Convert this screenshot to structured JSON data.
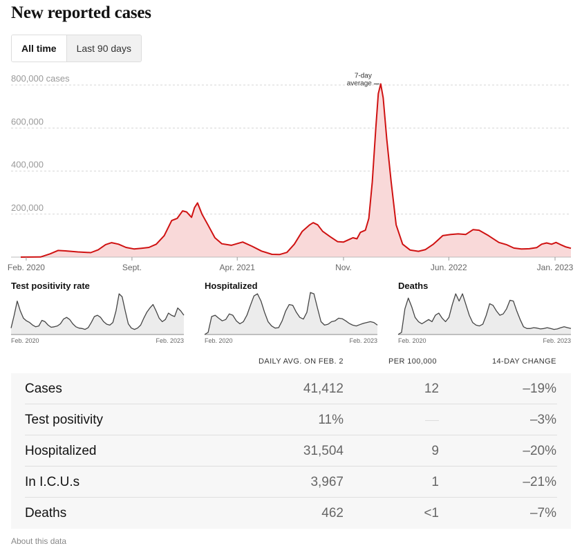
{
  "title": "New reported cases",
  "toggle": {
    "all_time": "All time",
    "last_90": "Last 90 days",
    "active": "All time"
  },
  "chart_data": [
    {
      "type": "area",
      "title": "",
      "ylim": [
        0,
        800000
      ],
      "yticks": [
        {
          "value": 800000,
          "label": "800,000 cases"
        },
        {
          "value": 600000,
          "label": "600,000"
        },
        {
          "value": 400000,
          "label": "400,000"
        },
        {
          "value": 200000,
          "label": "200,000"
        }
      ],
      "xrange": [
        "2020-01-21",
        "2023-02-02"
      ],
      "xticks": [
        {
          "date": "2020-02-01",
          "label": "Feb. 2020"
        },
        {
          "date": "2020-09-01",
          "label": "Sept."
        },
        {
          "date": "2021-04-01",
          "label": "Apr. 2021"
        },
        {
          "date": "2021-11-01",
          "label": "Nov."
        },
        {
          "date": "2022-06-01",
          "label": "Jun. 2022"
        },
        {
          "date": "2023-01-01",
          "label": "Jan. 2023"
        }
      ],
      "grid": true,
      "annotation": {
        "text": [
          "7-day",
          "average"
        ],
        "date": "2022-01-15",
        "value": 805000
      },
      "line_color": "#cf1111",
      "fill_color": "#f9d9d9",
      "series": [
        {
          "points": [
            [
              "2020-01-21",
              0
            ],
            [
              "2020-03-01",
              500
            ],
            [
              "2020-03-20",
              15000
            ],
            [
              "2020-04-05",
              31000
            ],
            [
              "2020-04-20",
              29000
            ],
            [
              "2020-05-15",
              24000
            ],
            [
              "2020-06-10",
              21000
            ],
            [
              "2020-06-25",
              34000
            ],
            [
              "2020-07-10",
              58000
            ],
            [
              "2020-07-22",
              67000
            ],
            [
              "2020-08-05",
              60000
            ],
            [
              "2020-08-20",
              45000
            ],
            [
              "2020-09-05",
              38000
            ],
            [
              "2020-09-20",
              41000
            ],
            [
              "2020-10-05",
              45000
            ],
            [
              "2020-10-20",
              60000
            ],
            [
              "2020-11-05",
              100000
            ],
            [
              "2020-11-20",
              170000
            ],
            [
              "2020-12-01",
              180000
            ],
            [
              "2020-12-12",
              215000
            ],
            [
              "2020-12-20",
              210000
            ],
            [
              "2020-12-30",
              185000
            ],
            [
              "2021-01-05",
              230000
            ],
            [
              "2021-01-11",
              252000
            ],
            [
              "2021-01-20",
              200000
            ],
            [
              "2021-02-01",
              150000
            ],
            [
              "2021-02-15",
              90000
            ],
            [
              "2021-03-01",
              62000
            ],
            [
              "2021-03-20",
              55000
            ],
            [
              "2021-04-12",
              70000
            ],
            [
              "2021-05-01",
              50000
            ],
            [
              "2021-05-20",
              28000
            ],
            [
              "2021-06-10",
              13000
            ],
            [
              "2021-06-25",
              12000
            ],
            [
              "2021-07-10",
              22000
            ],
            [
              "2021-07-25",
              60000
            ],
            [
              "2021-08-10",
              120000
            ],
            [
              "2021-08-25",
              150000
            ],
            [
              "2021-09-01",
              160000
            ],
            [
              "2021-09-10",
              150000
            ],
            [
              "2021-09-20",
              120000
            ],
            [
              "2021-10-05",
              95000
            ],
            [
              "2021-10-20",
              72000
            ],
            [
              "2021-11-01",
              70000
            ],
            [
              "2021-11-20",
              90000
            ],
            [
              "2021-11-28",
              85000
            ],
            [
              "2021-12-05",
              115000
            ],
            [
              "2021-12-15",
              125000
            ],
            [
              "2021-12-22",
              180000
            ],
            [
              "2021-12-29",
              350000
            ],
            [
              "2022-01-05",
              600000
            ],
            [
              "2022-01-10",
              760000
            ],
            [
              "2022-01-15",
              805000
            ],
            [
              "2022-01-20",
              740000
            ],
            [
              "2022-01-27",
              550000
            ],
            [
              "2022-02-05",
              350000
            ],
            [
              "2022-02-15",
              150000
            ],
            [
              "2022-02-28",
              60000
            ],
            [
              "2022-03-15",
              33000
            ],
            [
              "2022-04-01",
              27000
            ],
            [
              "2022-04-15",
              35000
            ],
            [
              "2022-05-01",
              60000
            ],
            [
              "2022-05-20",
              100000
            ],
            [
              "2022-06-05",
              105000
            ],
            [
              "2022-06-20",
              108000
            ],
            [
              "2022-07-05",
              105000
            ],
            [
              "2022-07-20",
              128000
            ],
            [
              "2022-08-01",
              125000
            ],
            [
              "2022-08-20",
              100000
            ],
            [
              "2022-09-10",
              68000
            ],
            [
              "2022-09-25",
              58000
            ],
            [
              "2022-10-10",
              42000
            ],
            [
              "2022-10-25",
              38000
            ],
            [
              "2022-11-10",
              39000
            ],
            [
              "2022-11-25",
              44000
            ],
            [
              "2022-12-05",
              60000
            ],
            [
              "2022-12-15",
              66000
            ],
            [
              "2022-12-25",
              60000
            ],
            [
              "2023-01-03",
              68000
            ],
            [
              "2023-01-12",
              58000
            ],
            [
              "2023-01-22",
              48000
            ],
            [
              "2023-02-02",
              41000
            ]
          ]
        }
      ]
    },
    {
      "type": "area",
      "title": "Test positivity rate",
      "xticks": [
        "Feb. 2020",
        "Feb. 2023"
      ],
      "ylim": [
        0,
        1
      ],
      "values": [
        0.15,
        0.45,
        0.78,
        0.55,
        0.38,
        0.32,
        0.28,
        0.22,
        0.18,
        0.2,
        0.33,
        0.3,
        0.22,
        0.17,
        0.18,
        0.2,
        0.25,
        0.36,
        0.4,
        0.35,
        0.25,
        0.18,
        0.15,
        0.14,
        0.12,
        0.16,
        0.28,
        0.42,
        0.45,
        0.4,
        0.3,
        0.24,
        0.22,
        0.28,
        0.55,
        0.95,
        0.88,
        0.55,
        0.25,
        0.15,
        0.12,
        0.15,
        0.22,
        0.38,
        0.52,
        0.62,
        0.7,
        0.55,
        0.38,
        0.3,
        0.35,
        0.5,
        0.45,
        0.42,
        0.62,
        0.55,
        0.45
      ]
    },
    {
      "type": "area",
      "title": "Hospitalized",
      "xticks": [
        "Feb. 2020",
        "Feb. 2023"
      ],
      "ylim": [
        0,
        1
      ],
      "values": [
        0.0,
        0.05,
        0.42,
        0.45,
        0.38,
        0.32,
        0.35,
        0.48,
        0.45,
        0.32,
        0.25,
        0.3,
        0.45,
        0.68,
        0.9,
        0.95,
        0.78,
        0.52,
        0.3,
        0.2,
        0.15,
        0.16,
        0.32,
        0.55,
        0.7,
        0.68,
        0.52,
        0.4,
        0.36,
        0.52,
        0.98,
        0.95,
        0.62,
        0.3,
        0.22,
        0.24,
        0.3,
        0.32,
        0.38,
        0.37,
        0.32,
        0.26,
        0.22,
        0.2,
        0.23,
        0.26,
        0.28,
        0.3,
        0.28,
        0.22
      ]
    },
    {
      "type": "area",
      "title": "Deaths",
      "xticks": [
        "Feb. 2020",
        "Feb. 2023"
      ],
      "ylim": [
        0,
        1
      ],
      "values": [
        0.0,
        0.05,
        0.6,
        0.85,
        0.65,
        0.4,
        0.3,
        0.25,
        0.3,
        0.35,
        0.3,
        0.45,
        0.5,
        0.38,
        0.3,
        0.4,
        0.7,
        0.95,
        0.78,
        0.95,
        0.7,
        0.45,
        0.28,
        0.22,
        0.2,
        0.24,
        0.45,
        0.72,
        0.68,
        0.55,
        0.45,
        0.48,
        0.6,
        0.8,
        0.78,
        0.55,
        0.35,
        0.18,
        0.14,
        0.14,
        0.16,
        0.15,
        0.13,
        0.14,
        0.16,
        0.14,
        0.12,
        0.13,
        0.16,
        0.18,
        0.16,
        0.14
      ]
    }
  ],
  "table": {
    "headers": {
      "daily": "DAILY AVG. ON FEB. 2",
      "per": "PER 100,000",
      "change": "14-DAY CHANGE"
    },
    "rows": [
      {
        "name": "Cases",
        "daily": "41,412",
        "per": "12",
        "change": "–19%"
      },
      {
        "name": "Test positivity",
        "daily": "11%",
        "per": "",
        "change": "–3%"
      },
      {
        "name": "Hospitalized",
        "daily": "31,504",
        "per": "9",
        "change": "–20%"
      },
      {
        "name": "In I.C.U.s",
        "daily": "3,967",
        "per": "1",
        "change": "–21%"
      },
      {
        "name": "Deaths",
        "daily": "462",
        "per": "<1",
        "change": "–7%"
      }
    ]
  },
  "footer": {
    "about": "About this data"
  }
}
